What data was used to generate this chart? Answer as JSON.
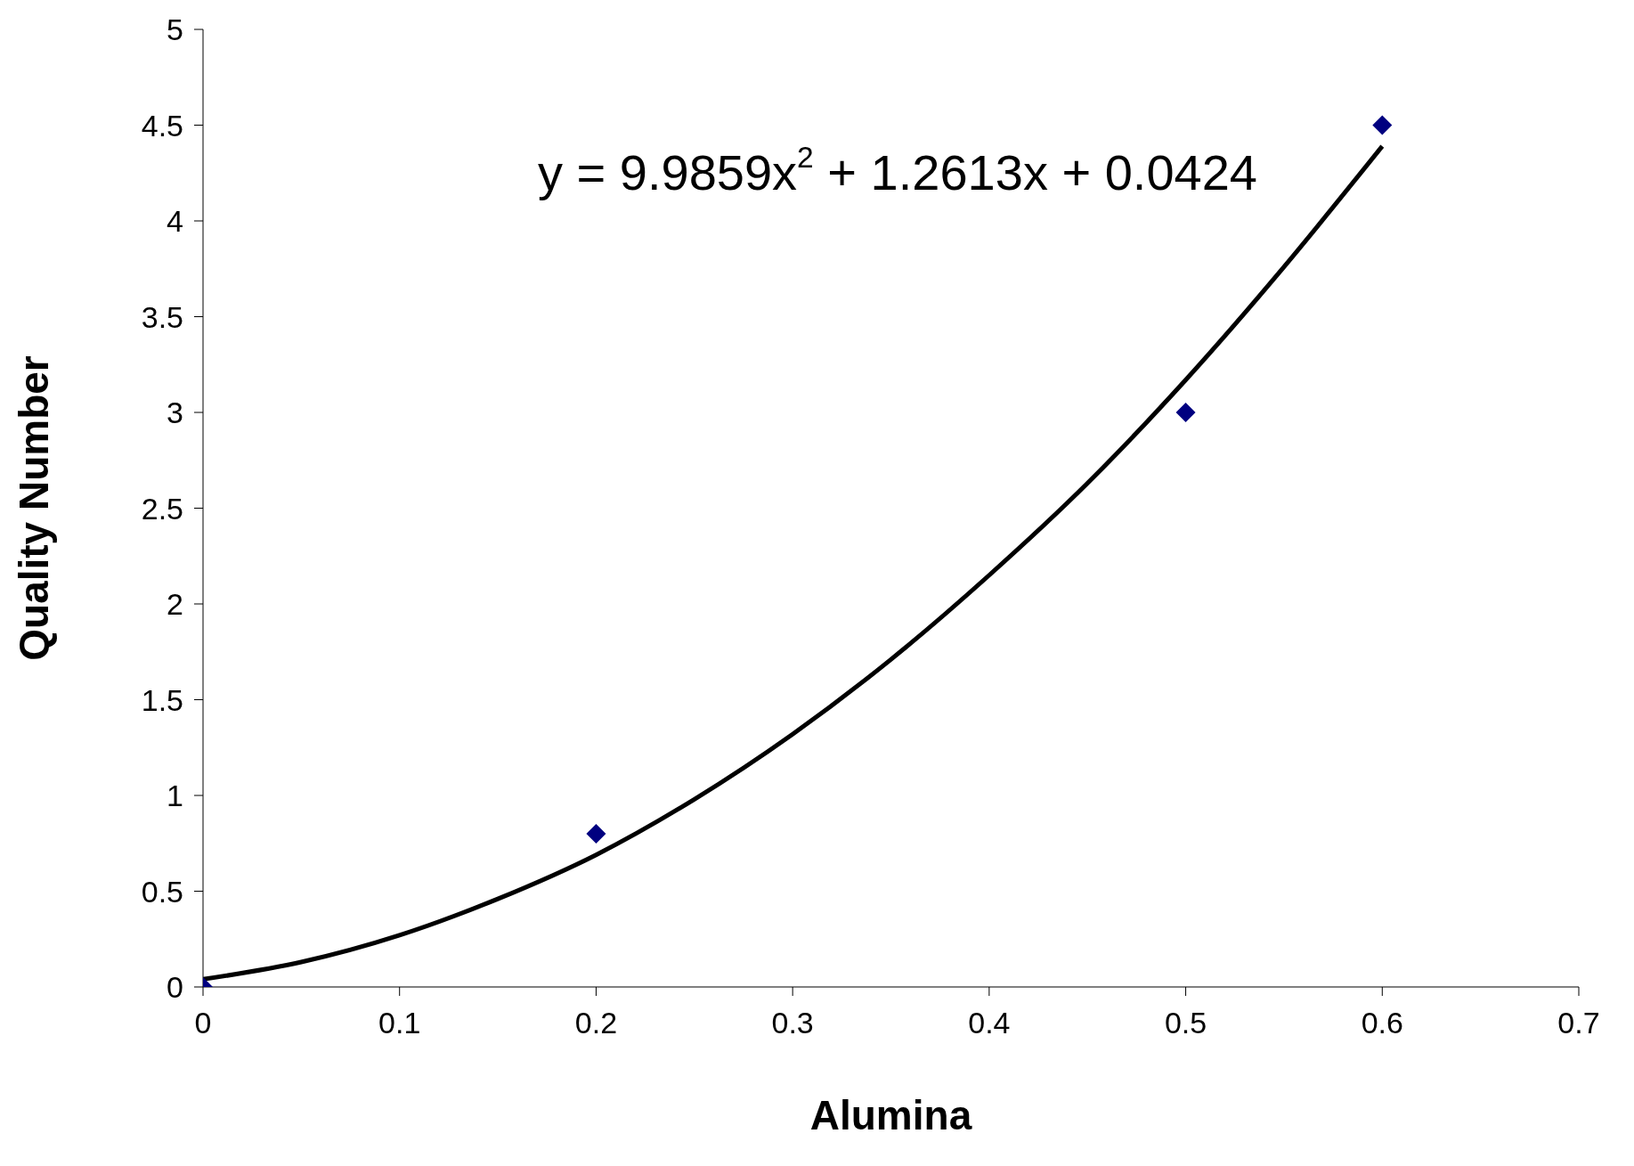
{
  "chart_data": {
    "type": "scatter",
    "xlabel": "Alumina",
    "ylabel": "Quality Number",
    "x": [
      0,
      0.2,
      0.5,
      0.6
    ],
    "series": [
      {
        "color": "#000080",
        "values": [
          0,
          0.8,
          3,
          4.5
        ],
        "marker": "diamond"
      },
      {
        "type": "line",
        "color": "#000000",
        "x": [
          0,
          0.05,
          0.1,
          0.15,
          0.2,
          0.25,
          0.3,
          0.35,
          0.4,
          0.45,
          0.5,
          0.55,
          0.6
        ],
        "values": [
          0.04,
          0.13,
          0.27,
          0.46,
          0.69,
          0.98,
          1.32,
          1.71,
          2.15,
          2.63,
          3.17,
          3.76,
          4.39
        ],
        "marker": "none"
      }
    ],
    "annotations": [
      "y = 9.9859x$^{2}$ + 1.2613x + 0.0424"
    ],
    "xlim": [
      0,
      0.7
    ],
    "xticks": [
      0,
      0.1,
      0.2,
      0.3,
      0.4,
      0.5,
      0.6,
      0.7
    ],
    "ylim": [
      0,
      5
    ],
    "yticks": [
      0,
      0.5,
      1,
      1.5,
      2,
      2.5,
      3,
      3.5,
      4,
      4.5,
      5
    ],
    "grid": false,
    "legend": false
  }
}
